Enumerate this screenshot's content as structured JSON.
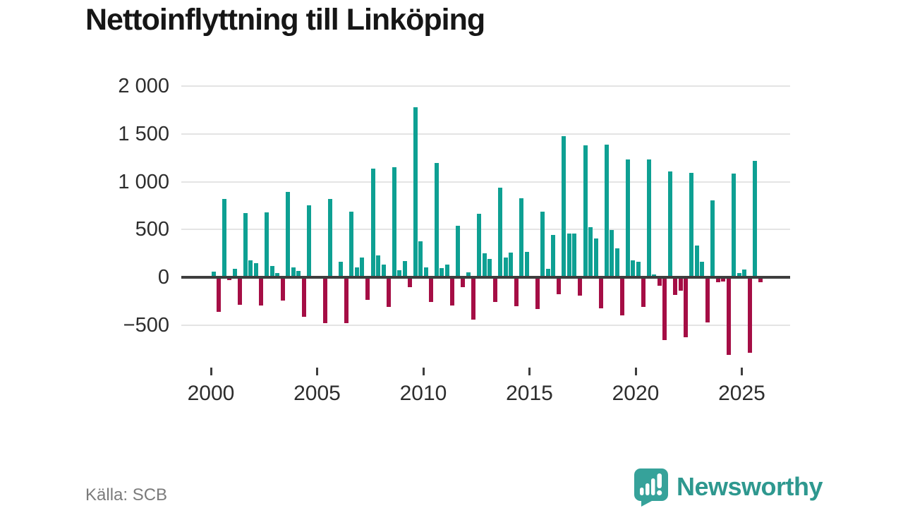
{
  "title": "Nettoinflyttning till Linköping",
  "source": "Källa: SCB",
  "logo": {
    "text": "Newsworthy"
  },
  "chart_data": {
    "type": "bar",
    "title": "Nettoinflyttning till Linköping",
    "frequency": "quarterly",
    "start": "2000-Q1",
    "end": "2025-Q4",
    "grid": "horizontal",
    "legend": "none",
    "positive_color": "#0ea093",
    "negative_color": "#a50e45",
    "ylim": [
      -900,
      2050
    ],
    "y_ticks": [
      {
        "label": "2 000",
        "value": 2000
      },
      {
        "label": "1 500",
        "value": 1500
      },
      {
        "label": "1 000",
        "value": 1000
      },
      {
        "label": "500",
        "value": 500
      },
      {
        "label": "0",
        "value": 0
      },
      {
        "label": "−500",
        "value": -500
      }
    ],
    "x_ticks": [
      {
        "label": "2000",
        "year": 2000
      },
      {
        "label": "2005",
        "year": 2005
      },
      {
        "label": "2010",
        "year": 2010
      },
      {
        "label": "2015",
        "year": 2015
      },
      {
        "label": "2020",
        "year": 2020
      },
      {
        "label": "2025",
        "year": 2025
      }
    ],
    "values_by_year": [
      {
        "year": 2000,
        "q": [
          60,
          -360,
          820,
          -30
        ]
      },
      {
        "year": 2001,
        "q": [
          85,
          -290,
          670,
          180
        ]
      },
      {
        "year": 2002,
        "q": [
          145,
          -295,
          680,
          120
        ]
      },
      {
        "year": 2003,
        "q": [
          45,
          -245,
          890,
          100
        ]
      },
      {
        "year": 2004,
        "q": [
          70,
          -415,
          755,
          0
        ]
      },
      {
        "year": 2005,
        "q": [
          0,
          -480,
          820,
          0
        ]
      },
      {
        "year": 2006,
        "q": [
          160,
          -480,
          685,
          100
        ]
      },
      {
        "year": 2007,
        "q": [
          205,
          -240,
          1140,
          230
        ]
      },
      {
        "year": 2008,
        "q": [
          130,
          -310,
          1155,
          75
        ]
      },
      {
        "year": 2009,
        "q": [
          170,
          -100,
          1780,
          380
        ]
      },
      {
        "year": 2010,
        "q": [
          100,
          -255,
          1200,
          95
        ]
      },
      {
        "year": 2011,
        "q": [
          130,
          -295,
          540,
          -100
        ]
      },
      {
        "year": 2012,
        "q": [
          50,
          -440,
          665,
          250
        ]
      },
      {
        "year": 2013,
        "q": [
          195,
          -255,
          935,
          210
        ]
      },
      {
        "year": 2014,
        "q": [
          255,
          -305,
          830,
          265
        ]
      },
      {
        "year": 2015,
        "q": [
          0,
          -335,
          690,
          85
        ]
      },
      {
        "year": 2016,
        "q": [
          445,
          -175,
          1480,
          460
        ]
      },
      {
        "year": 2017,
        "q": [
          460,
          -195,
          1380,
          525
        ]
      },
      {
        "year": 2018,
        "q": [
          405,
          -325,
          1390,
          495
        ]
      },
      {
        "year": 2019,
        "q": [
          305,
          -400,
          1230,
          180
        ]
      },
      {
        "year": 2020,
        "q": [
          160,
          -310,
          1235,
          30
        ]
      },
      {
        "year": 2021,
        "q": [
          -85,
          -655,
          1110,
          -185
        ]
      },
      {
        "year": 2022,
        "q": [
          -140,
          -630,
          1090,
          330
        ]
      },
      {
        "year": 2023,
        "q": [
          165,
          -475,
          805,
          -55
        ]
      },
      {
        "year": 2024,
        "q": [
          -45,
          -810,
          1085,
          45
        ]
      },
      {
        "year": 2025,
        "q": [
          80,
          -790,
          1215,
          -55
        ]
      }
    ]
  }
}
